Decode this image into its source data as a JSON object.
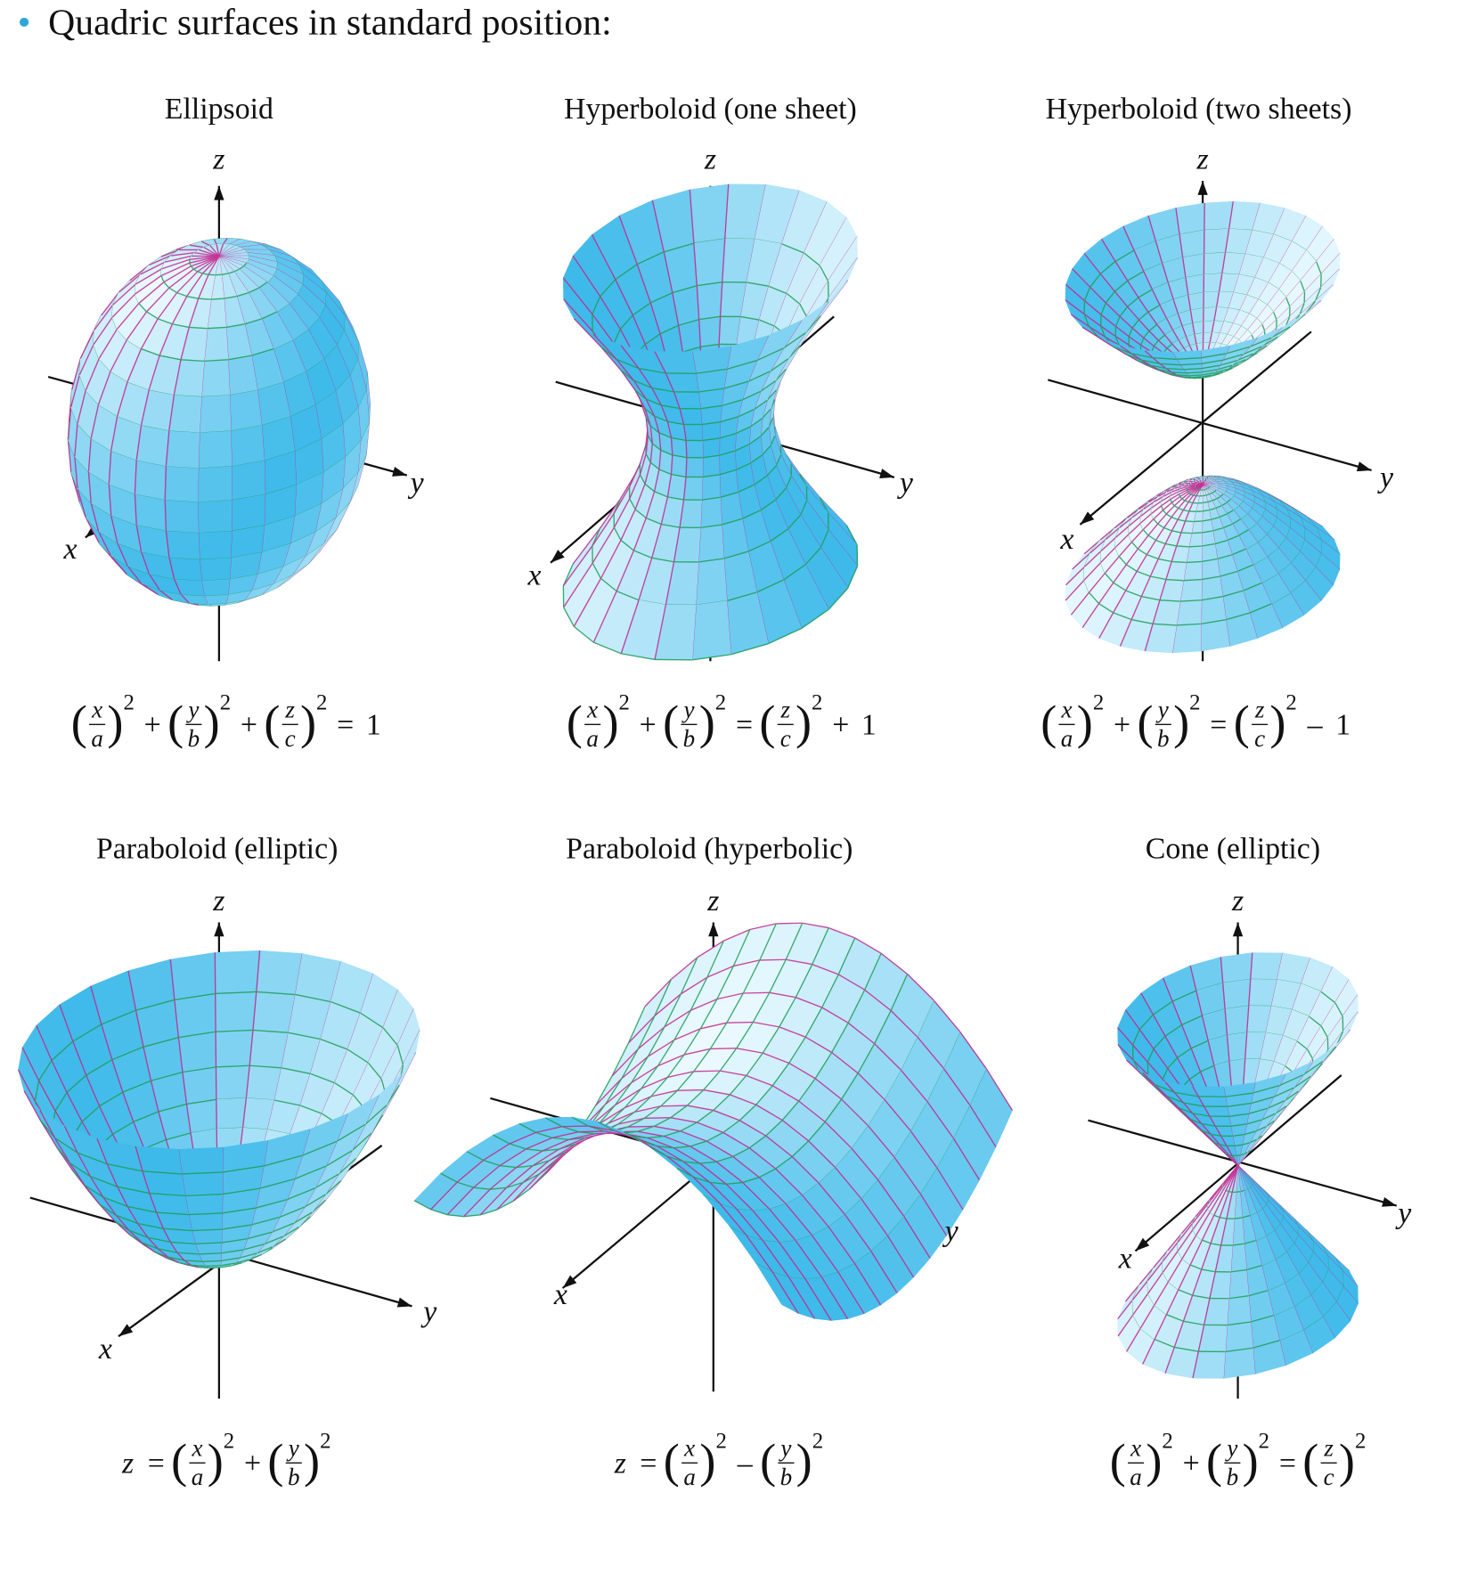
{
  "header": {
    "bullet": "Quadric surfaces in standard position:"
  },
  "panels": [
    {
      "title": "Ellipsoid",
      "axes": {
        "z": "z",
        "y": "y",
        "x": "x"
      },
      "equation": [
        {
          "num": "x",
          "den": "a",
          "exp": "2"
        },
        "+",
        {
          "num": "y",
          "den": "b",
          "exp": "2"
        },
        "+",
        {
          "num": "z",
          "den": "c",
          "exp": "2"
        },
        "=",
        "1"
      ]
    },
    {
      "title": "Hyperboloid (one sheet)",
      "axes": {
        "z": "z",
        "y": "y",
        "x": "x"
      },
      "equation": [
        {
          "num": "x",
          "den": "a",
          "exp": "2"
        },
        "+",
        {
          "num": "y",
          "den": "b",
          "exp": "2"
        },
        "=",
        {
          "num": "z",
          "den": "c",
          "exp": "2"
        },
        "+",
        "1"
      ]
    },
    {
      "title": "Hyperboloid (two sheets)",
      "axes": {
        "z": "z",
        "y": "y",
        "x": "x"
      },
      "equation": [
        {
          "num": "x",
          "den": "a",
          "exp": "2"
        },
        "+",
        {
          "num": "y",
          "den": "b",
          "exp": "2"
        },
        "=",
        {
          "num": "z",
          "den": "c",
          "exp": "2"
        },
        "–",
        "1"
      ]
    },
    {
      "title": "Paraboloid (elliptic)",
      "axes": {
        "z": "z",
        "y": "y",
        "x": "x"
      },
      "equation": [
        "z",
        "=",
        {
          "num": "x",
          "den": "a",
          "exp": "2"
        },
        "+",
        {
          "num": "y",
          "den": "b",
          "exp": "2"
        }
      ]
    },
    {
      "title": "Paraboloid (hyperbolic)",
      "axes": {
        "z": "z",
        "y": "y",
        "x": "x"
      },
      "equation": [
        "z",
        "=",
        {
          "num": "x",
          "den": "a",
          "exp": "2"
        },
        "–",
        {
          "num": "y",
          "den": "b",
          "exp": "2"
        }
      ]
    },
    {
      "title": "Cone (elliptic)",
      "axes": {
        "z": "z",
        "y": "y",
        "x": "x"
      },
      "equation": [
        {
          "num": "x",
          "den": "a",
          "exp": "2"
        },
        "+",
        {
          "num": "y",
          "den": "b",
          "exp": "2"
        },
        "=",
        {
          "num": "z",
          "den": "c",
          "exp": "2"
        }
      ]
    }
  ]
}
